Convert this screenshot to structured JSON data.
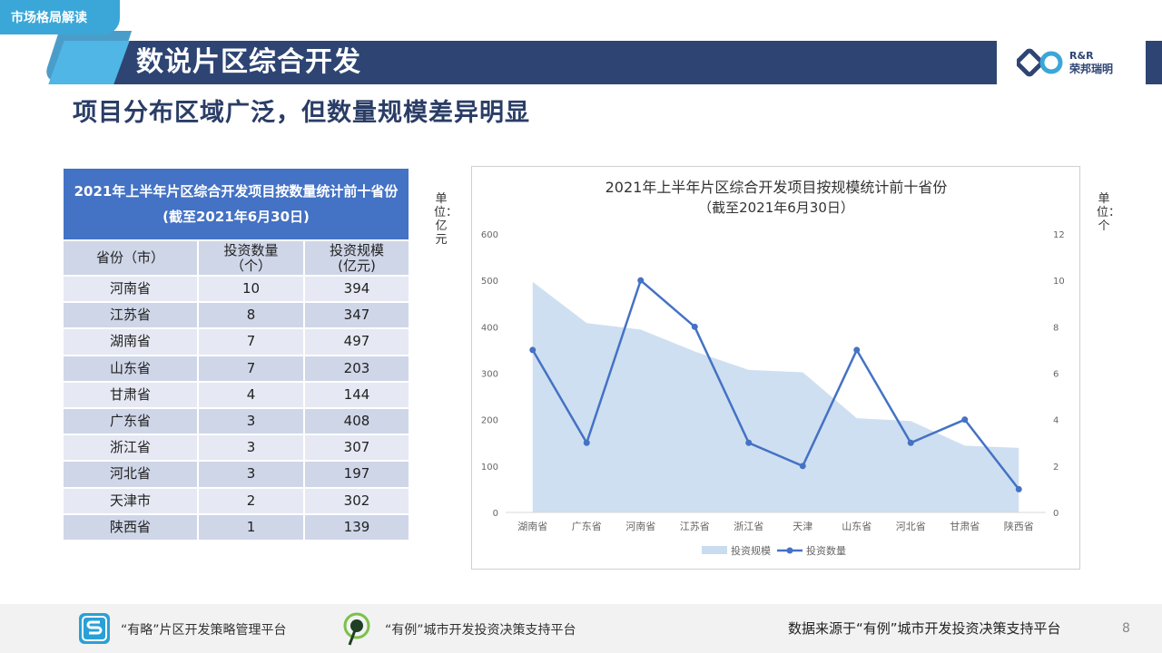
{
  "header": {
    "tag": "市场格局解读",
    "title": "数说片区综合开发",
    "subtitle": "项目分布区域广泛，但数量规模差异明显",
    "logo_en": "R&R",
    "logo_cn": "荣邦瑞明"
  },
  "table": {
    "title_line1": "2021年上半年片区综合开发项目按数量统计前十省份",
    "title_line2": "(截至2021年6月30日)",
    "columns": [
      "省份（市）",
      "投资数量\n（个）",
      "投资规模\n(亿元)"
    ],
    "col1": "省份（市）",
    "col2": "投资数量",
    "col2_unit": "（个）",
    "col3": "投资规模",
    "col3_unit": "(亿元)",
    "rows": [
      [
        "河南省",
        "10",
        "394"
      ],
      [
        "江苏省",
        "8",
        "347"
      ],
      [
        "湖南省",
        "7",
        "497"
      ],
      [
        "山东省",
        "7",
        "203"
      ],
      [
        "甘肃省",
        "4",
        "144"
      ],
      [
        "广东省",
        "3",
        "408"
      ],
      [
        "浙江省",
        "3",
        "307"
      ],
      [
        "河北省",
        "3",
        "197"
      ],
      [
        "天津市",
        "2",
        "302"
      ],
      [
        "陕西省",
        "1",
        "139"
      ]
    ]
  },
  "chart_data": {
    "type": "area",
    "title": "2021年上半年片区综合开发项目按规模统计前十省份",
    "subtitle": "（截至2021年6月30日）",
    "unit_left": "单位：亿元",
    "unit_right": "单位：个",
    "categories": [
      "湖南省",
      "广东省",
      "河南省",
      "江苏省",
      "浙江省",
      "天津",
      "山东省",
      "河北省",
      "甘肃省",
      "陕西省"
    ],
    "series": [
      {
        "name": "投资规模",
        "type": "area",
        "axis": "left",
        "color": "#c9dcf0",
        "values": [
          497,
          408,
          394,
          347,
          307,
          302,
          203,
          197,
          144,
          139
        ]
      },
      {
        "name": "投资数量",
        "type": "line",
        "axis": "right",
        "color": "#4472c4",
        "values": [
          7,
          3,
          10,
          8,
          3,
          2,
          7,
          3,
          4,
          1
        ]
      }
    ],
    "y_left": {
      "min": 0,
      "max": 600,
      "ticks": [
        0,
        100,
        200,
        300,
        400,
        500,
        600
      ]
    },
    "y_right": {
      "min": 0,
      "max": 12,
      "ticks": [
        0,
        2,
        4,
        6,
        8,
        10,
        12
      ]
    },
    "grid": false,
    "legend": "bottom"
  },
  "footer": {
    "platform1": "“有略”片区开发策略管理平台",
    "platform2": "“有例”城市开发投资决策支持平台",
    "source": "数据来源于“有例”城市开发投资决策支持平台",
    "page": "8"
  },
  "colors": {
    "navy": "#2e4574",
    "accent": "#4fb6e5",
    "table_header": "#4472c4"
  }
}
